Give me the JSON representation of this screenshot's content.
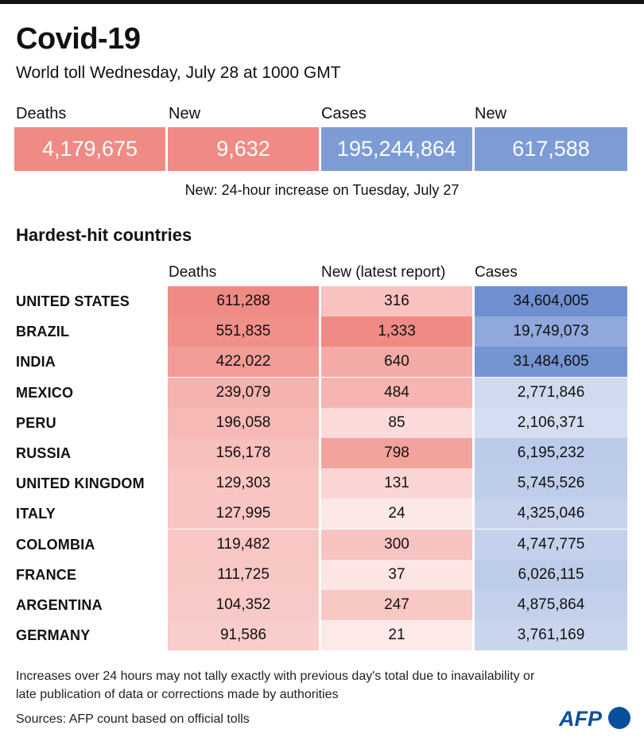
{
  "header": {
    "title": "Covid-19",
    "subtitle": "World toll Wednesday, July 28 at 1000 GMT"
  },
  "summary": {
    "deaths_label": "Deaths",
    "deaths_value": "4,179,675",
    "new_deaths_label": "New",
    "new_deaths_value": "9,632",
    "cases_label": "Cases",
    "cases_value": "195,244,864",
    "new_cases_label": "New",
    "new_cases_value": "617,588",
    "note": "New: 24-hour increase on Tuesday, July 27"
  },
  "table": {
    "section_title": "Hardest-hit countries",
    "columns": [
      "Deaths",
      "New (latest report)",
      "Cases"
    ]
  },
  "colors": {
    "deaths_scale": "#f08a84",
    "cases_scale": "#6f8fd0"
  },
  "chart_data": {
    "type": "table",
    "columns": [
      "Deaths",
      "New (latest report)",
      "Cases"
    ],
    "rows": [
      {
        "country": "UNITED STATES",
        "deaths": "611,288",
        "new": "316",
        "cases": "34,604,005"
      },
      {
        "country": "BRAZIL",
        "deaths": "551,835",
        "new": "1,333",
        "cases": "19,749,073"
      },
      {
        "country": "INDIA",
        "deaths": "422,022",
        "new": "640",
        "cases": "31,484,605"
      },
      {
        "country": "MEXICO",
        "deaths": "239,079",
        "new": "484",
        "cases": "2,771,846"
      },
      {
        "country": "PERU",
        "deaths": "196,058",
        "new": "85",
        "cases": "2,106,371"
      },
      {
        "country": "RUSSIA",
        "deaths": "156,178",
        "new": "798",
        "cases": "6,195,232"
      },
      {
        "country": "UNITED KINGDOM",
        "deaths": "129,303",
        "new": "131",
        "cases": "5,745,526"
      },
      {
        "country": "ITALY",
        "deaths": "127,995",
        "new": "24",
        "cases": "4,325,046"
      },
      {
        "country": "COLOMBIA",
        "deaths": "119,482",
        "new": "300",
        "cases": "4,747,775"
      },
      {
        "country": "FRANCE",
        "deaths": "111,725",
        "new": "37",
        "cases": "6,026,115"
      },
      {
        "country": "ARGENTINA",
        "deaths": "104,352",
        "new": "247",
        "cases": "4,875,864"
      },
      {
        "country": "GERMANY",
        "deaths": "91,586",
        "new": "21",
        "cases": "3,761,169"
      }
    ]
  },
  "footer": {
    "footnote": "Increases over 24 hours may not tally exactly with previous day's total due to inavailability or late publication of data or corrections made by authorities",
    "sources": "Sources: AFP count based on official tolls",
    "logo_text": "AFP"
  }
}
